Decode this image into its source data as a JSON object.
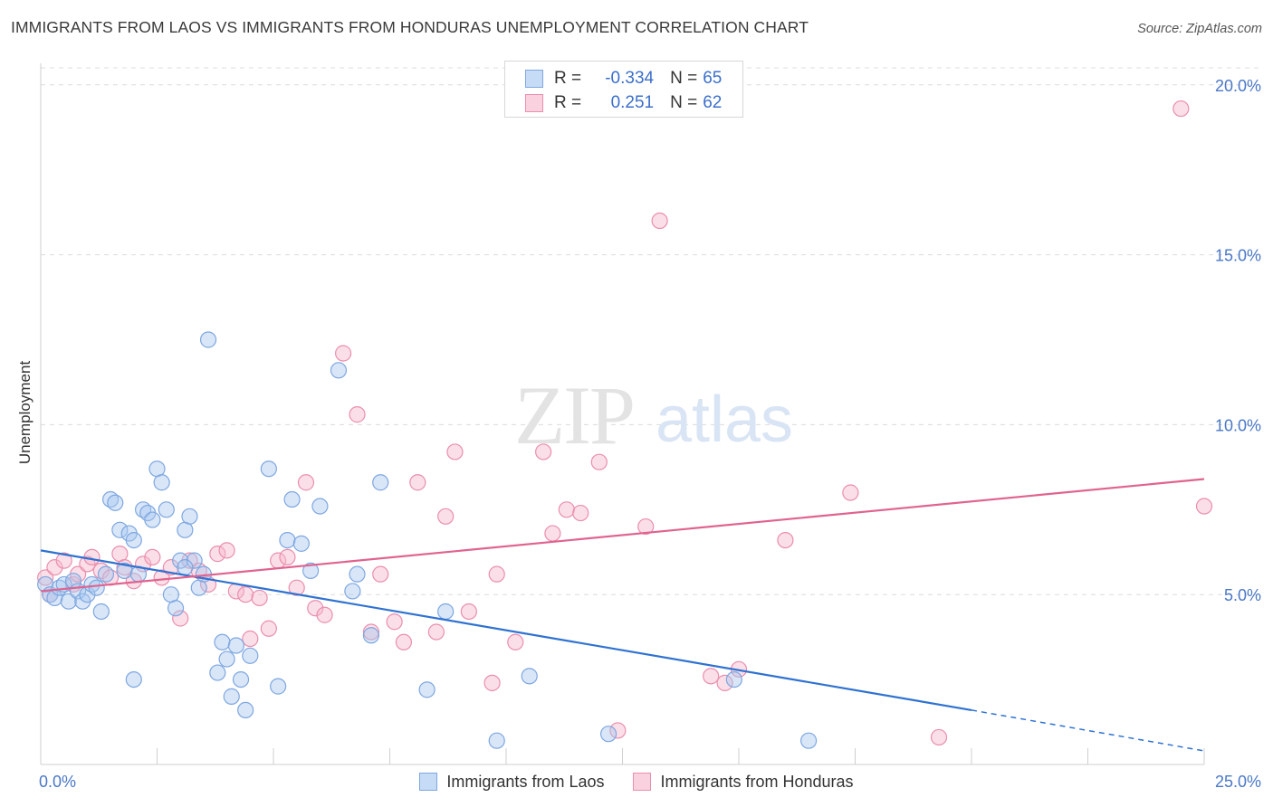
{
  "header": {
    "title": "IMMIGRANTS FROM LAOS VS IMMIGRANTS FROM HONDURAS UNEMPLOYMENT CORRELATION CHART",
    "source": "Source: ZipAtlas.com"
  },
  "watermark": {
    "zip": "ZIP",
    "atlas": "atlas"
  },
  "legend": {
    "r_label": "R =",
    "n_label": "N =",
    "rows": [
      {
        "r": "-0.334",
        "n": "65"
      },
      {
        "r": "0.251",
        "n": "62"
      }
    ]
  },
  "colors": {
    "laos_fill": "#a9c8ef",
    "laos_stroke": "#7ea7e0",
    "laos_line": "#2f72d1",
    "honduras_fill": "#f7b7cb",
    "honduras_stroke": "#ea8eae",
    "honduras_line": "#e0638f",
    "tick_label": "#4a78c8"
  },
  "chart_data": {
    "type": "scatter",
    "title": "IMMIGRANTS FROM LAOS VS IMMIGRANTS FROM HONDURAS UNEMPLOYMENT CORRELATION CHART",
    "xlabel": "",
    "ylabel": "Unemployment",
    "xlim": [
      0,
      25
    ],
    "ylim": [
      0,
      20.5
    ],
    "x_tick_labels": [
      "0.0%",
      "25.0%"
    ],
    "y_ticks": [
      5,
      10,
      15,
      20
    ],
    "y_tick_labels": [
      "5.0%",
      "10.0%",
      "15.0%",
      "20.0%"
    ],
    "grid": "horizontal dashed",
    "legend_placement": "bottom-center",
    "series": [
      {
        "name": "Immigrants from Laos",
        "r": -0.334,
        "n": 65,
        "trend": {
          "x0": 0,
          "y0": 6.3,
          "x1": 20,
          "y1": 1.6,
          "dashed_to_x": 25,
          "dashed_to_y": 0.4
        },
        "points": [
          [
            0.1,
            5.3
          ],
          [
            0.2,
            5.0
          ],
          [
            0.3,
            4.9
          ],
          [
            0.4,
            5.2
          ],
          [
            0.5,
            5.3
          ],
          [
            0.6,
            4.8
          ],
          [
            0.7,
            5.4
          ],
          [
            0.8,
            5.1
          ],
          [
            0.9,
            4.8
          ],
          [
            1.0,
            5.0
          ],
          [
            1.1,
            5.3
          ],
          [
            1.2,
            5.2
          ],
          [
            1.3,
            4.5
          ],
          [
            1.4,
            5.6
          ],
          [
            1.5,
            7.8
          ],
          [
            1.6,
            7.7
          ],
          [
            1.7,
            6.9
          ],
          [
            1.8,
            5.7
          ],
          [
            1.9,
            6.8
          ],
          [
            2.0,
            6.6
          ],
          [
            2.1,
            5.6
          ],
          [
            2.2,
            7.5
          ],
          [
            2.3,
            7.4
          ],
          [
            2.4,
            7.2
          ],
          [
            2.5,
            8.7
          ],
          [
            2.6,
            8.3
          ],
          [
            2.7,
            7.5
          ],
          [
            2.8,
            5.0
          ],
          [
            2.9,
            4.6
          ],
          [
            3.0,
            6.0
          ],
          [
            3.1,
            6.9
          ],
          [
            3.2,
            7.3
          ],
          [
            3.3,
            6.0
          ],
          [
            3.4,
            5.2
          ],
          [
            3.5,
            5.6
          ],
          [
            3.6,
            12.5
          ],
          [
            3.8,
            2.7
          ],
          [
            3.9,
            3.6
          ],
          [
            4.0,
            3.1
          ],
          [
            4.1,
            2.0
          ],
          [
            4.2,
            3.5
          ],
          [
            4.3,
            2.5
          ],
          [
            4.4,
            1.6
          ],
          [
            4.5,
            3.2
          ],
          [
            4.9,
            8.7
          ],
          [
            5.1,
            2.3
          ],
          [
            5.3,
            6.6
          ],
          [
            5.4,
            7.8
          ],
          [
            5.6,
            6.5
          ],
          [
            5.8,
            5.7
          ],
          [
            6.0,
            7.6
          ],
          [
            6.4,
            11.6
          ],
          [
            6.7,
            5.1
          ],
          [
            6.8,
            5.6
          ],
          [
            7.1,
            3.8
          ],
          [
            7.3,
            8.3
          ],
          [
            8.3,
            2.2
          ],
          [
            8.7,
            4.5
          ],
          [
            9.8,
            0.7
          ],
          [
            10.5,
            2.6
          ],
          [
            12.2,
            0.9
          ],
          [
            14.9,
            2.5
          ],
          [
            16.5,
            0.7
          ],
          [
            2.0,
            2.5
          ],
          [
            3.1,
            5.8
          ]
        ]
      },
      {
        "name": "Immigrants from Honduras",
        "r": 0.251,
        "n": 62,
        "trend": {
          "x0": 0,
          "y0": 5.1,
          "x1": 25,
          "y1": 8.4
        },
        "points": [
          [
            0.1,
            5.5
          ],
          [
            0.2,
            5.0
          ],
          [
            0.3,
            5.8
          ],
          [
            0.5,
            6.0
          ],
          [
            0.7,
            5.3
          ],
          [
            0.8,
            5.6
          ],
          [
            1.0,
            5.9
          ],
          [
            1.1,
            6.1
          ],
          [
            1.3,
            5.7
          ],
          [
            1.5,
            5.5
          ],
          [
            1.7,
            6.2
          ],
          [
            1.8,
            5.8
          ],
          [
            2.0,
            5.4
          ],
          [
            2.2,
            5.9
          ],
          [
            2.4,
            6.1
          ],
          [
            2.6,
            5.5
          ],
          [
            2.8,
            5.8
          ],
          [
            3.0,
            4.3
          ],
          [
            3.2,
            6.0
          ],
          [
            3.4,
            5.7
          ],
          [
            3.6,
            5.3
          ],
          [
            3.8,
            6.2
          ],
          [
            4.0,
            6.3
          ],
          [
            4.2,
            5.1
          ],
          [
            4.4,
            5.0
          ],
          [
            4.5,
            3.7
          ],
          [
            4.7,
            4.9
          ],
          [
            4.9,
            4.0
          ],
          [
            5.1,
            6.0
          ],
          [
            5.3,
            6.1
          ],
          [
            5.5,
            5.2
          ],
          [
            5.7,
            8.3
          ],
          [
            5.9,
            4.6
          ],
          [
            6.1,
            4.4
          ],
          [
            6.5,
            12.1
          ],
          [
            6.8,
            10.3
          ],
          [
            7.1,
            3.9
          ],
          [
            7.3,
            5.6
          ],
          [
            7.6,
            4.2
          ],
          [
            7.8,
            3.6
          ],
          [
            8.1,
            8.3
          ],
          [
            8.5,
            3.9
          ],
          [
            8.7,
            7.3
          ],
          [
            8.9,
            9.2
          ],
          [
            9.2,
            4.5
          ],
          [
            9.7,
            2.4
          ],
          [
            9.8,
            5.6
          ],
          [
            10.2,
            3.6
          ],
          [
            10.8,
            9.2
          ],
          [
            11.0,
            6.8
          ],
          [
            11.3,
            7.5
          ],
          [
            11.6,
            7.4
          ],
          [
            12.0,
            8.9
          ],
          [
            12.4,
            1.0
          ],
          [
            13.0,
            7.0
          ],
          [
            13.3,
            16.0
          ],
          [
            14.4,
            2.6
          ],
          [
            14.7,
            2.4
          ],
          [
            15.0,
            2.8
          ],
          [
            16.0,
            6.6
          ],
          [
            17.4,
            8.0
          ],
          [
            19.3,
            0.8
          ]
        ],
        "outliers_note": ""
      }
    ],
    "extra_points_honduras": [
      [
        24.5,
        19.3
      ],
      [
        25.0,
        7.6
      ]
    ]
  },
  "bottom_legend": {
    "items": [
      {
        "label": "Immigrants from Laos"
      },
      {
        "label": "Immigrants from Honduras"
      }
    ]
  }
}
